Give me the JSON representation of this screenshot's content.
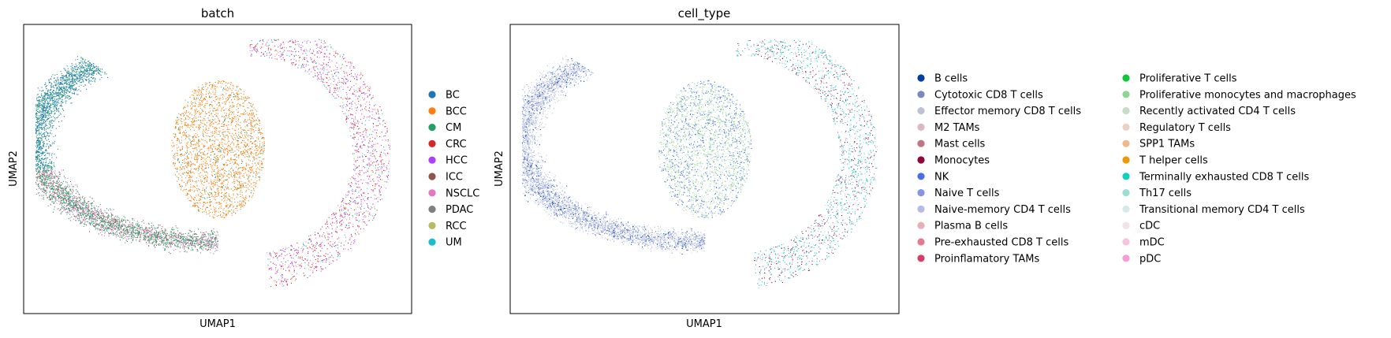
{
  "chart_data": [
    {
      "type": "scatter",
      "title": "batch",
      "xlabel": "UMAP1",
      "ylabel": "UMAP2",
      "ticks": "none",
      "legend_position": "right",
      "legend": [
        {
          "label": "BC",
          "color": "#1f77b4"
        },
        {
          "label": "BCC",
          "color": "#ff7f0e"
        },
        {
          "label": "CM",
          "color": "#279e68"
        },
        {
          "label": "CRC",
          "color": "#d62728"
        },
        {
          "label": "HCC",
          "color": "#aa40fc"
        },
        {
          "label": "ICC",
          "color": "#8c564b"
        },
        {
          "label": "NSCLC",
          "color": "#e377c2"
        },
        {
          "label": "PDAC",
          "color": "#7f7f7f"
        },
        {
          "label": "RCC",
          "color": "#b5bd61"
        },
        {
          "label": "UM",
          "color": "#17becf"
        }
      ]
    },
    {
      "type": "scatter",
      "title": "cell_type",
      "xlabel": "UMAP1",
      "ylabel": "UMAP2",
      "ticks": "none",
      "legend_position": "right",
      "legend": [
        {
          "label": "B cells",
          "color": "#023fa5"
        },
        {
          "label": "Cytotoxic CD8 T cells",
          "color": "#7d87b9"
        },
        {
          "label": "Effector memory CD8 T cells",
          "color": "#bec1d4"
        },
        {
          "label": "M2 TAMs",
          "color": "#d6bcc0"
        },
        {
          "label": "Mast cells",
          "color": "#bb7784"
        },
        {
          "label": "Monocytes",
          "color": "#8e063b"
        },
        {
          "label": "NK",
          "color": "#4a6fe3"
        },
        {
          "label": "Naive T cells",
          "color": "#8595e1"
        },
        {
          "label": "Naive-memory CD4 T cells",
          "color": "#b5bbe3"
        },
        {
          "label": "Plasma B cells",
          "color": "#e6afb9"
        },
        {
          "label": "Pre-exhausted CD8 T cells",
          "color": "#e07b91"
        },
        {
          "label": "Proinflamatory TAMs",
          "color": "#d33f6a"
        },
        {
          "label": "Proliferative T cells",
          "color": "#11c638"
        },
        {
          "label": "Proliferative monocytes and macrophages",
          "color": "#8dd593"
        },
        {
          "label": "Recently activated CD4 T cells",
          "color": "#c6dec7"
        },
        {
          "label": "Regulatory T cells",
          "color": "#ead3c6"
        },
        {
          "label": "SPP1 TAMs",
          "color": "#f0b98d"
        },
        {
          "label": "T helper cells",
          "color": "#ef9708"
        },
        {
          "label": "Terminally exhausted CD8 T cells",
          "color": "#0fcfc0"
        },
        {
          "label": "Th17 cells",
          "color": "#9cded6"
        },
        {
          "label": "Transitional memory CD4 T cells",
          "color": "#d5eae7"
        },
        {
          "label": "cDC",
          "color": "#f3e1eb"
        },
        {
          "label": "mDC",
          "color": "#f6c4e1"
        },
        {
          "label": "pDC",
          "color": "#f79cd4"
        }
      ]
    }
  ]
}
